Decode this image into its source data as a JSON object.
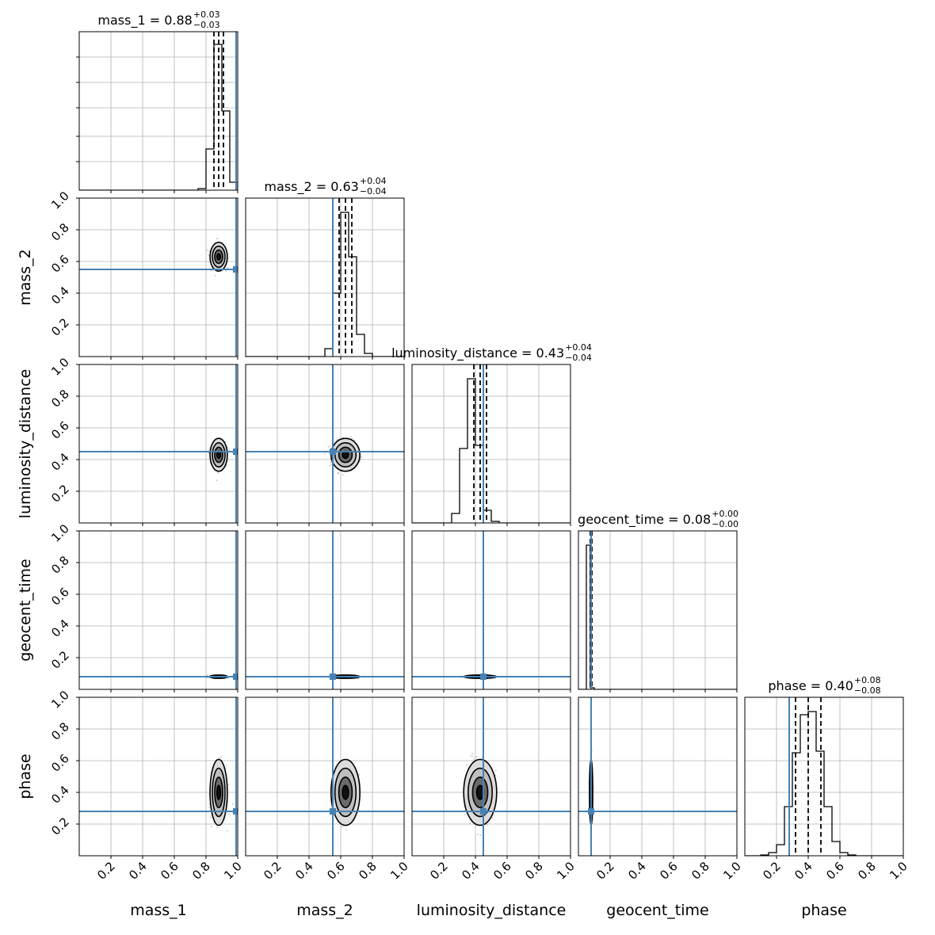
{
  "chart_data": {
    "type": "corner",
    "parameters": [
      {
        "name": "mass_1",
        "label": "mass_1",
        "title_prefix": "mass_1 = ",
        "median_text": "0.88",
        "plus_text": "+0.03",
        "minus_text": "−0.03",
        "median": 0.88,
        "err_plus": 0.03,
        "err_minus": 0.03,
        "truth": 0.99,
        "sigma": 0.021
      },
      {
        "name": "mass_2",
        "label": "mass_2",
        "title_prefix": "mass_2 = ",
        "median_text": "0.63",
        "plus_text": "+0.04",
        "minus_text": "−0.04",
        "median": 0.63,
        "err_plus": 0.04,
        "err_minus": 0.04,
        "truth": 0.55,
        "sigma": 0.035
      },
      {
        "name": "luminosity_distance",
        "label": "luminosity_distance",
        "title_prefix": "luminosity_distance = ",
        "median_text": "0.43",
        "plus_text": "+0.04",
        "minus_text": "−0.04",
        "median": 0.43,
        "err_plus": 0.04,
        "err_minus": 0.04,
        "truth": 0.45,
        "sigma": 0.04
      },
      {
        "name": "geocent_time",
        "label": "geocent_time",
        "title_prefix": "geocent_time = ",
        "median_text": "0.08",
        "plus_text": "+0.00",
        "minus_text": "−0.00",
        "median": 0.08,
        "err_plus": 0.005,
        "err_minus": 0.005,
        "truth": 0.08,
        "sigma": 0.004
      },
      {
        "name": "phase",
        "label": "phase",
        "title_prefix": "phase = ",
        "median_text": "0.40",
        "plus_text": "+0.08",
        "minus_text": "−0.08",
        "median": 0.4,
        "err_plus": 0.08,
        "err_minus": 0.08,
        "truth": 0.28,
        "sigma": 0.08
      }
    ],
    "axis_range": [
      0,
      1
    ],
    "x_tick_labels": [
      "0.2",
      "0.4",
      "0.6",
      "0.8",
      "1.0"
    ],
    "y_tick_labels": [
      "0.2",
      "0.4",
      "0.6",
      "0.8",
      "1.0"
    ],
    "grid": true,
    "quantile_lines": "dashed black",
    "truth_color": "#4682b4",
    "hist_color": "#000000",
    "histograms": [
      {
        "bins": [
          0.75,
          0.8,
          0.85,
          0.9,
          0.95,
          1.0
        ],
        "heights": [
          0.01,
          0.26,
          0.92,
          0.5,
          0.05
        ]
      },
      {
        "bins": [
          0.5,
          0.55,
          0.6,
          0.65,
          0.7,
          0.75,
          0.8
        ],
        "heights": [
          0.05,
          0.4,
          0.91,
          0.63,
          0.14,
          0.02
        ]
      },
      {
        "bins": [
          0.25,
          0.3,
          0.35,
          0.4,
          0.45,
          0.5,
          0.55
        ],
        "heights": [
          0.06,
          0.47,
          0.91,
          0.49,
          0.08,
          0.01
        ]
      },
      {
        "bins": [
          0.05,
          0.075,
          0.1
        ],
        "heights": [
          0.91,
          0.01
        ]
      },
      {
        "bins": [
          0.1,
          0.15,
          0.2,
          0.25,
          0.3,
          0.35,
          0.4,
          0.45,
          0.5,
          0.55,
          0.6,
          0.65,
          0.7,
          0.75
        ],
        "heights": [
          0.005,
          0.02,
          0.07,
          0.31,
          0.65,
          0.89,
          0.91,
          0.66,
          0.31,
          0.09,
          0.02,
          0.005,
          0.0
        ]
      }
    ]
  }
}
